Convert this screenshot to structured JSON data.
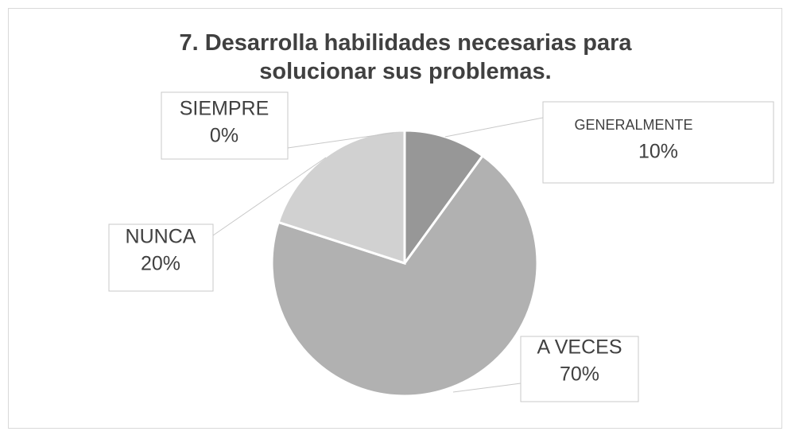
{
  "chart_data": {
    "type": "pie",
    "title": "7. Desarrolla habilidades necesarias para solucionar sus problemas.",
    "categories": [
      "GENERALMENTE",
      "A VECES",
      "NUNCA",
      "SIEMPRE"
    ],
    "values": [
      10,
      70,
      20,
      0
    ],
    "value_labels": [
      "10%",
      "70%",
      "20%",
      "0%"
    ],
    "colors": [
      "#979797",
      "#b1b1b1",
      "#d1d1d1",
      "#e6e6e6"
    ]
  }
}
